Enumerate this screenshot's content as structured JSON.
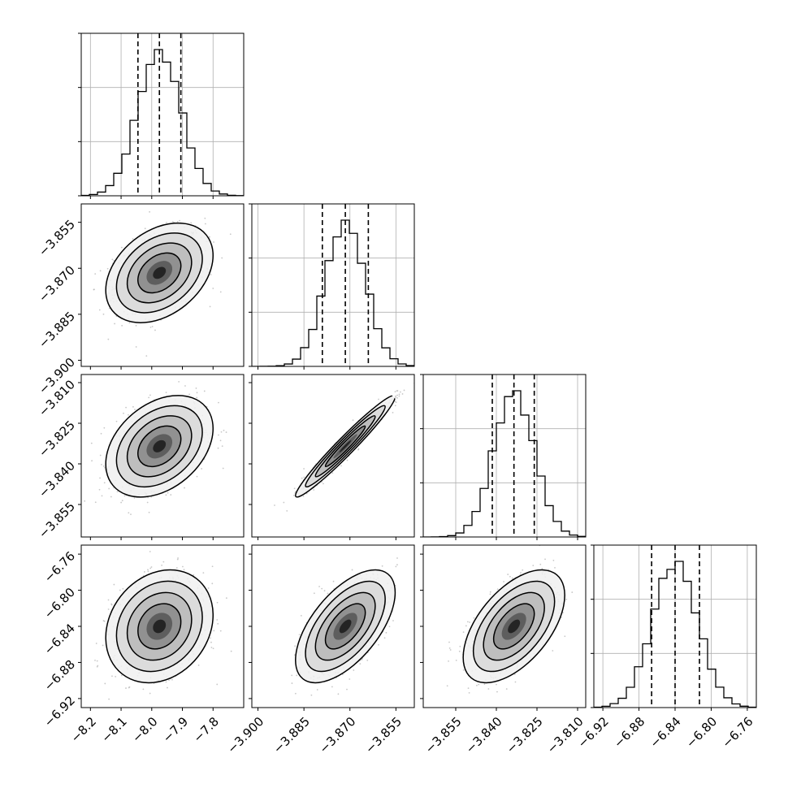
{
  "chart_data": {
    "type": "corner",
    "parameters": [
      {
        "range": [
          -8.23,
          -7.7
        ],
        "ticks": [
          -8.2,
          -8.1,
          -8.0,
          -7.9,
          -7.8
        ],
        "tick_labels": [
          "−8.2",
          "−8.1",
          "−8.0",
          "−7.9",
          "−7.8"
        ],
        "mean": -7.975,
        "std": 0.07,
        "quantiles": [
          -8.045,
          -7.975,
          -7.905
        ]
      },
      {
        "range": [
          -3.902,
          -3.849
        ],
        "ticks": [
          -3.9,
          -3.885,
          -3.87,
          -3.855
        ],
        "tick_labels": [
          "−3.900",
          "−3.885",
          "−3.870",
          "−3.855"
        ],
        "mean": -3.8715,
        "std": 0.0065,
        "quantiles": [
          -3.879,
          -3.8715,
          -3.864
        ]
      },
      {
        "range": [
          -3.867,
          -3.807
        ],
        "ticks": [
          -3.855,
          -3.84,
          -3.825,
          -3.81
        ],
        "tick_labels": [
          "−3.855",
          "−3.840",
          "−3.825",
          "−3.810"
        ],
        "mean": -3.8335,
        "std": 0.0075,
        "quantiles": [
          -3.8415,
          -3.8335,
          -3.826
        ]
      },
      {
        "range": [
          -6.93,
          -6.75
        ],
        "ticks": [
          -6.92,
          -6.88,
          -6.84,
          -6.8,
          -6.76
        ],
        "tick_labels": [
          "−6.92",
          "−6.88",
          "−6.84",
          "−6.80",
          "−6.76"
        ],
        "mean": -6.84,
        "std": 0.025,
        "quantiles": [
          -6.866,
          -6.84,
          -6.813
        ]
      }
    ],
    "correlations": {
      "1-0": 0.35,
      "2-0": 0.35,
      "2-1": 0.97,
      "3-0": 0.2,
      "3-1": 0.6,
      "3-2": 0.55
    },
    "histogram_gridlines": 3,
    "grid": true
  },
  "colors": {
    "points": "#b0b0b0",
    "density_dark": "#000000",
    "contour": "#000000",
    "grid": "#b0b0b0"
  }
}
